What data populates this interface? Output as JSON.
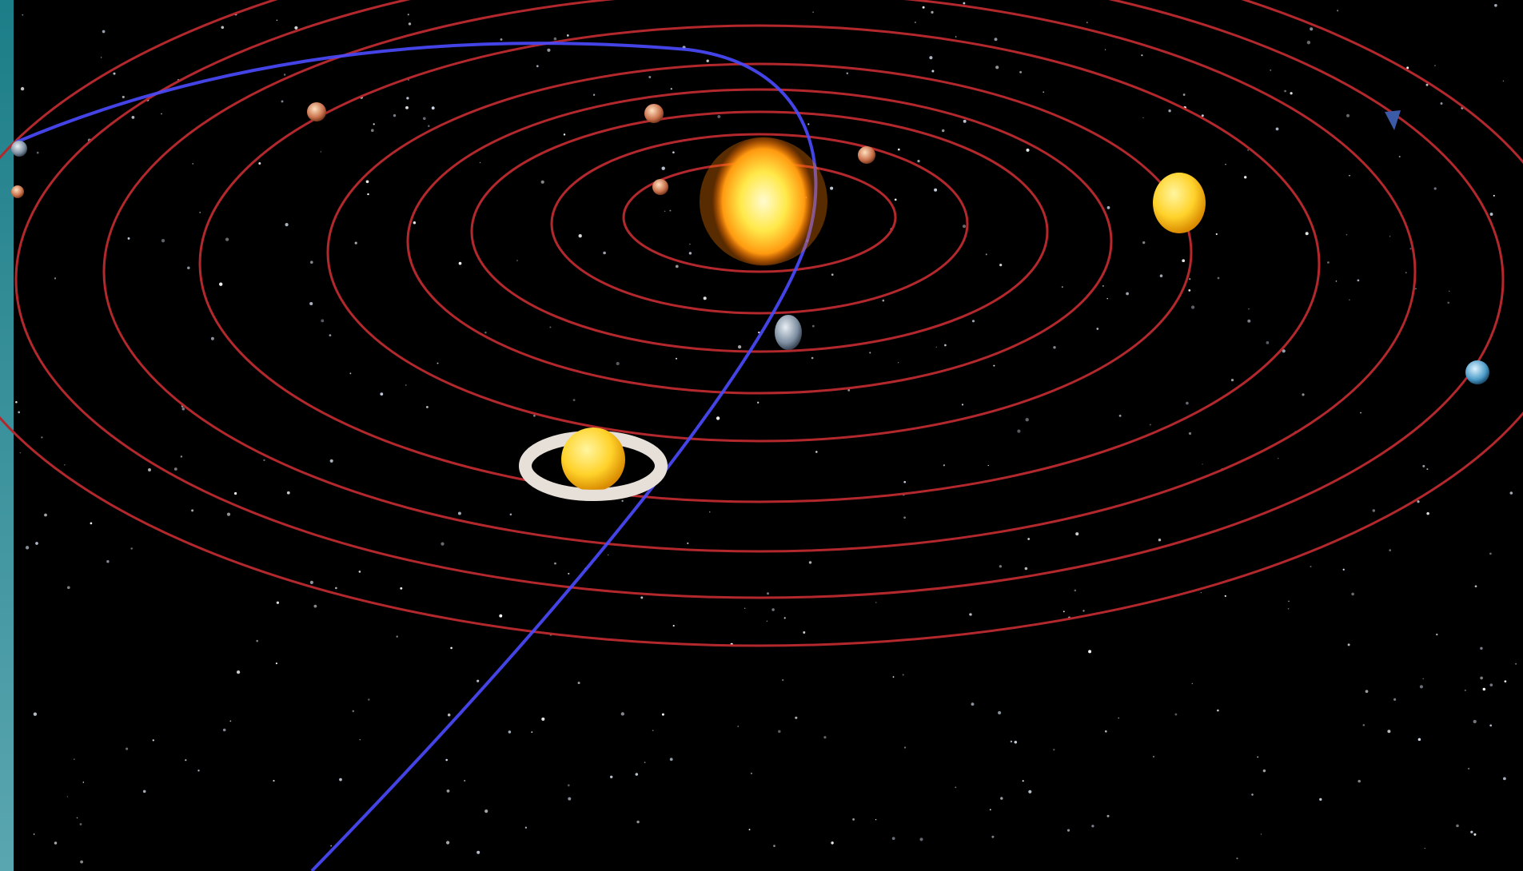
{
  "scene": {
    "description_free": true,
    "orbit_count": 9,
    "colors": {
      "space": "#000000",
      "orbit": "#b3282d",
      "comet_path": "#4848ff",
      "sun_core": "#fff27a",
      "sun_glow": "#ff8a00",
      "side_strip_top": "#1c7e88",
      "side_strip_bottom": "#5aa6b0"
    },
    "icons": [
      "sun-icon",
      "saturn-icon",
      "planet-icon",
      "comet-path"
    ]
  }
}
